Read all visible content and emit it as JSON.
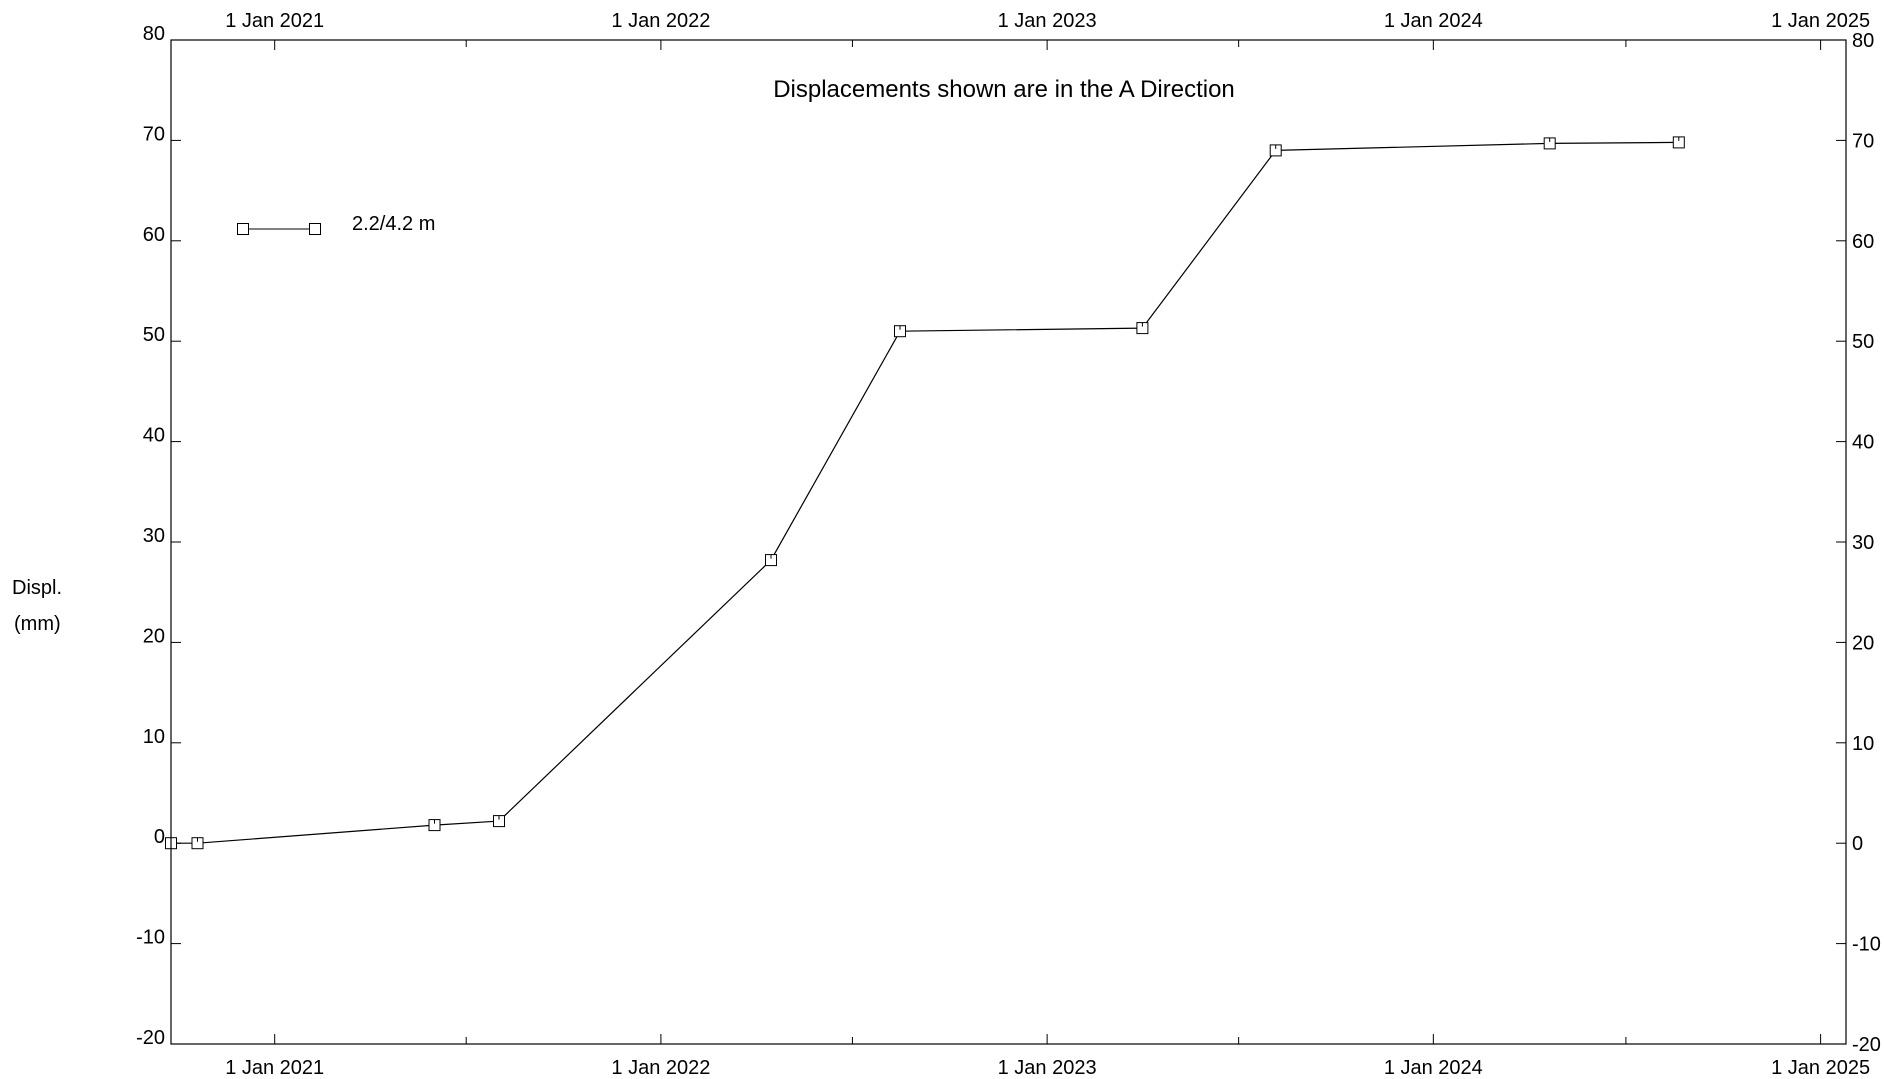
{
  "chart_data": {
    "type": "line",
    "title": "Displacements shown are in the  A Direction",
    "ylabel_line1": "Displ.",
    "ylabel_line2": "(mm)",
    "xlabel": "",
    "ylim": [
      -20,
      80
    ],
    "yticks": [
      -20,
      -10,
      0,
      10,
      20,
      30,
      40,
      50,
      60,
      70,
      80
    ],
    "ytick_labels": [
      "-20",
      "-10",
      "0",
      "10",
      "20",
      "30",
      "40",
      "50",
      "60",
      "70",
      "80"
    ],
    "xlim": [
      "2020-09-25",
      "2025-01-25"
    ],
    "x_major_ticks": [
      "2021-01-01",
      "2022-01-01",
      "2023-01-01",
      "2024-01-01",
      "2025-01-01"
    ],
    "x_major_labels": [
      "1 Jan 2021",
      "1 Jan 2022",
      "1 Jan 2023",
      "1 Jan 2024",
      "1 Jan 2025"
    ],
    "x_minor_ticks": [
      "2021-07-01",
      "2022-07-01",
      "2023-07-01",
      "2024-07-01"
    ],
    "grid": false,
    "legend_position": "top-left",
    "marker": "square",
    "line_color": "#000000",
    "series": [
      {
        "name": "2.2/4.2 m",
        "x": [
          "2020-09-25",
          "2020-10-20",
          "2021-06-01",
          "2021-08-01",
          "2022-04-15",
          "2022-08-15",
          "2023-04-01",
          "2023-08-05",
          "2024-04-20",
          "2024-08-20"
        ],
        "y": [
          0,
          0,
          1.8,
          2.2,
          28.2,
          51.0,
          51.3,
          69.0,
          69.7,
          69.8
        ]
      }
    ]
  }
}
